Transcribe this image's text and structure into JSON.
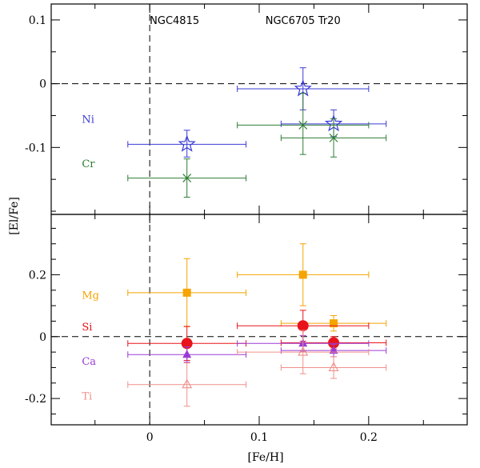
{
  "chart_data": [
    {
      "type": "scatter",
      "panel": "top",
      "ylabel": "[El/Fe]",
      "xlabel": "",
      "xlim": [
        -0.09,
        0.29
      ],
      "ylim": [
        -0.205,
        0.125
      ],
      "x_ticks": [],
      "y_ticks": [
        {
          "value": 0.1,
          "label": "0.1"
        },
        {
          "value": 0,
          "label": "0"
        },
        {
          "value": -0.1,
          "label": "-0.1"
        }
      ],
      "annotations": [
        {
          "text": "NGC4815",
          "x": 0.0
        },
        {
          "text": "NGC6705 Tr20",
          "x": 0.14
        }
      ],
      "series": [
        {
          "name": "Ni",
          "color": "#3b3bd6",
          "marker": "star",
          "points": [
            {
              "x": 0.034,
              "y": -0.095,
              "xerr": [
                0.054,
                0.054
              ],
              "yerr": [
                0.02,
                0.022
              ]
            },
            {
              "x": 0.14,
              "y": -0.008,
              "xerr": [
                0.06,
                0.06
              ],
              "yerr": [
                0.033,
                0.033
              ]
            },
            {
              "x": 0.168,
              "y": -0.063,
              "xerr": [
                0.048,
                0.048
              ],
              "yerr": [
                0.02,
                0.022
              ]
            }
          ]
        },
        {
          "name": "Cr",
          "color": "#2e7d32",
          "marker": "cross",
          "points": [
            {
              "x": 0.034,
              "y": -0.148,
              "xerr": [
                0.054,
                0.054
              ],
              "yerr": [
                0.03,
                0.03
              ]
            },
            {
              "x": 0.14,
              "y": -0.065,
              "xerr": [
                0.06,
                0.06
              ],
              "yerr": [
                0.046,
                0.05
              ]
            },
            {
              "x": 0.168,
              "y": -0.085,
              "xerr": [
                0.048,
                0.048
              ],
              "yerr": [
                0.03,
                0.03
              ]
            }
          ]
        }
      ]
    },
    {
      "type": "scatter",
      "panel": "bottom",
      "ylabel": "[El/Fe]",
      "xlabel": "[Fe/H]",
      "xlim": [
        -0.09,
        0.29
      ],
      "ylim": [
        -0.285,
        0.395
      ],
      "x_ticks": [
        {
          "value": 0,
          "label": "0"
        },
        {
          "value": 0.1,
          "label": "0.1"
        },
        {
          "value": 0.2,
          "label": "0.2"
        }
      ],
      "y_ticks": [
        {
          "value": 0.2,
          "label": "0.2"
        },
        {
          "value": 0,
          "label": "0"
        },
        {
          "value": -0.2,
          "label": "-0.2"
        }
      ],
      "annotations": [],
      "series": [
        {
          "name": "Mg",
          "color": "#f5a400",
          "marker": "square",
          "points": [
            {
              "x": 0.034,
              "y": 0.142,
              "xerr": [
                0.054,
                0.054
              ],
              "yerr": [
                0.11,
                0.11
              ]
            },
            {
              "x": 0.14,
              "y": 0.2,
              "xerr": [
                0.06,
                0.06
              ],
              "yerr": [
                0.1,
                0.1
              ]
            },
            {
              "x": 0.168,
              "y": 0.043,
              "xerr": [
                0.048,
                0.048
              ],
              "yerr": [
                0.025,
                0.025
              ]
            }
          ]
        },
        {
          "name": "Si",
          "color": "#e8141a",
          "marker": "circle",
          "points": [
            {
              "x": 0.034,
              "y": -0.022,
              "xerr": [
                0.054,
                0.054
              ],
              "yerr": [
                0.055,
                0.055
              ]
            },
            {
              "x": 0.14,
              "y": 0.035,
              "xerr": [
                0.06,
                0.06
              ],
              "yerr": [
                0.05,
                0.05
              ]
            },
            {
              "x": 0.168,
              "y": -0.02,
              "xerr": [
                0.048,
                0.048
              ],
              "yerr": [
                0.02,
                0.02
              ]
            }
          ]
        },
        {
          "name": "Ca",
          "color": "#9b3bd6",
          "marker": "triangle",
          "points": [
            {
              "x": 0.034,
              "y": -0.058,
              "xerr": [
                0.054,
                0.054
              ],
              "yerr": [
                0.025,
                0.025
              ]
            },
            {
              "x": 0.14,
              "y": -0.022,
              "xerr": [
                0.06,
                0.06
              ],
              "yerr": [
                0.025,
                0.025
              ]
            },
            {
              "x": 0.168,
              "y": -0.045,
              "xerr": [
                0.048,
                0.048
              ],
              "yerr": [
                0.02,
                0.02
              ]
            }
          ]
        },
        {
          "name": "Ti",
          "color": "#f0908a",
          "marker": "triangle-open",
          "points": [
            {
              "x": 0.034,
              "y": -0.155,
              "xerr": [
                0.054,
                0.054
              ],
              "yerr": [
                0.07,
                0.07
              ]
            },
            {
              "x": 0.14,
              "y": -0.05,
              "xerr": [
                0.06,
                0.06
              ],
              "yerr": [
                0.07,
                0.07
              ]
            },
            {
              "x": 0.168,
              "y": -0.1,
              "xerr": [
                0.048,
                0.048
              ],
              "yerr": [
                0.035,
                0.035
              ]
            }
          ]
        }
      ]
    }
  ]
}
